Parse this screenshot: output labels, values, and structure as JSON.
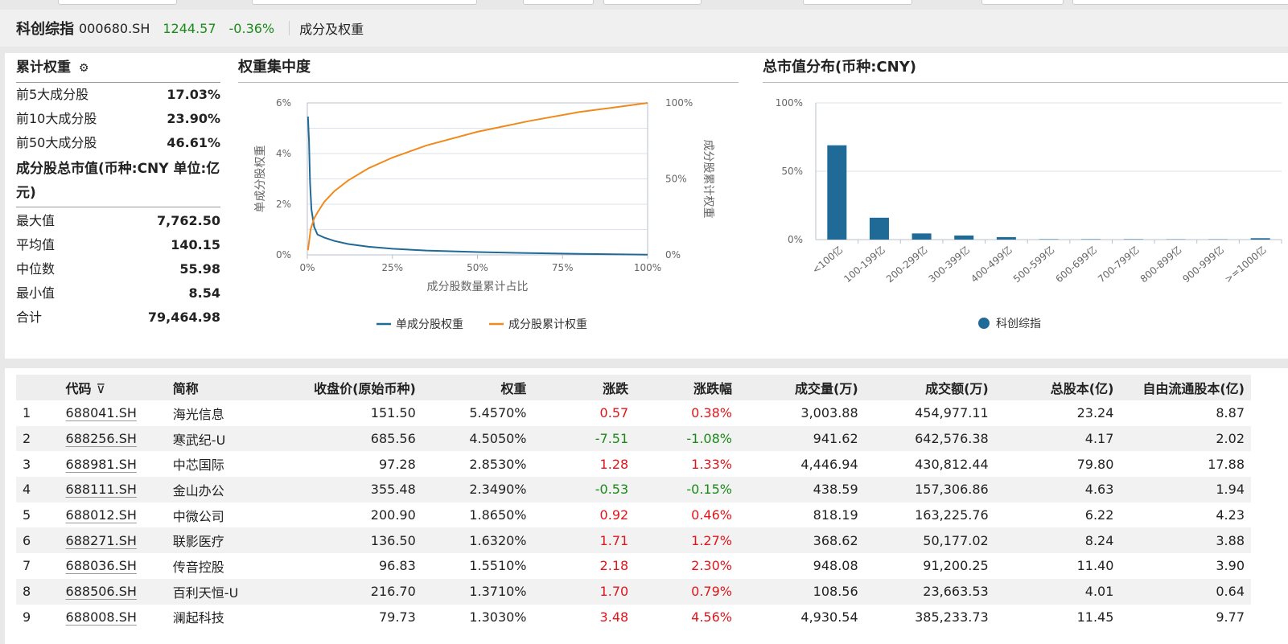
{
  "header": {
    "index_name": "科创综指",
    "index_code": "000680.SH",
    "price": "1244.57",
    "change_pct": "-0.36%",
    "section": "成分及权重"
  },
  "cumulative": {
    "title": "累计权重",
    "rows": [
      {
        "label": "前5大成分股",
        "value": "17.03%"
      },
      {
        "label": "前10大成分股",
        "value": "23.90%"
      },
      {
        "label": "前50大成分股",
        "value": "46.61%"
      }
    ]
  },
  "market_value": {
    "title": "成分股总市值(币种:CNY 单位:亿元)",
    "rows": [
      {
        "label": "最大值",
        "value": "7,762.50"
      },
      {
        "label": "平均值",
        "value": "140.15"
      },
      {
        "label": "中位数",
        "value": "55.98"
      },
      {
        "label": "最小值",
        "value": "8.54"
      },
      {
        "label": "合计",
        "value": "79,464.98"
      }
    ]
  },
  "charts": {
    "concentration_title": "权重集中度",
    "distribution_title": "总市值分布(币种:CNY)"
  },
  "chart_data": [
    {
      "type": "line",
      "title": "权重集中度",
      "xlabel": "成分股数量累计占比",
      "ylabel_left": "单成分股权重",
      "ylabel_right": "成分股累计权重",
      "x_ticks": [
        "0%",
        "25%",
        "50%",
        "75%",
        "100%"
      ],
      "y_left_ticks": [
        "0%",
        "2%",
        "4%",
        "6%"
      ],
      "y_right_ticks": [
        "0%",
        "50%",
        "100%"
      ],
      "xlim": [
        0,
        100
      ],
      "y_left_lim": [
        0,
        6
      ],
      "y_right_lim": [
        0,
        100
      ],
      "series": [
        {
          "name": "单成分股权重",
          "color": "#1f6a96",
          "axis": "left",
          "x": [
            0.2,
            0.5,
            0.8,
            1.2,
            2,
            3,
            5,
            8,
            12,
            18,
            25,
            35,
            50,
            65,
            80,
            100
          ],
          "y": [
            5.46,
            4.5,
            2.85,
            1.8,
            1.1,
            0.8,
            0.68,
            0.55,
            0.43,
            0.32,
            0.24,
            0.17,
            0.11,
            0.07,
            0.04,
            0.01
          ]
        },
        {
          "name": "成分股累计权重",
          "color": "#f08a1c",
          "axis": "right",
          "x": [
            0.2,
            1,
            2,
            3,
            5,
            8,
            12,
            18,
            25,
            35,
            50,
            65,
            80,
            90,
            100
          ],
          "y": [
            3,
            17,
            24,
            28,
            35,
            42,
            49,
            57,
            64,
            72,
            81,
            88,
            94,
            97,
            100
          ]
        }
      ],
      "legend_position": "bottom"
    },
    {
      "type": "bar",
      "title": "总市值分布(币种:CNY)",
      "categories": [
        "<100亿",
        "100-199亿",
        "200-299亿",
        "300-399亿",
        "400-499亿",
        "500-599亿",
        "600-699亿",
        "700-799亿",
        "800-899亿",
        "900-999亿",
        ">=1000亿"
      ],
      "series": [
        {
          "name": "科创综指",
          "color": "#1f6a96",
          "values": [
            69,
            16,
            4.5,
            3,
            1.8,
            0.3,
            0.3,
            0.3,
            0.2,
            0.2,
            1
          ]
        }
      ],
      "y_ticks": [
        "0%",
        "50%",
        "100%"
      ],
      "ylim": [
        0,
        100
      ],
      "legend_position": "bottom"
    }
  ],
  "table": {
    "columns": [
      "",
      "代码",
      "简称",
      "收盘价(原始币种)",
      "权重",
      "涨跌",
      "涨跌幅",
      "成交量(万)",
      "成交额(万)",
      "总股本(亿)",
      "自由流通股本(亿)"
    ],
    "rows": [
      [
        "1",
        "688041.SH",
        "海光信息",
        "151.50",
        "5.4570%",
        "0.57",
        "0.38%",
        "3,003.88",
        "454,977.11",
        "23.24",
        "8.87"
      ],
      [
        "2",
        "688256.SH",
        "寒武纪-U",
        "685.56",
        "4.5050%",
        "-7.51",
        "-1.08%",
        "941.62",
        "642,576.38",
        "4.17",
        "2.02"
      ],
      [
        "3",
        "688981.SH",
        "中芯国际",
        "97.28",
        "2.8530%",
        "1.28",
        "1.33%",
        "4,446.94",
        "430,812.44",
        "79.80",
        "17.88"
      ],
      [
        "4",
        "688111.SH",
        "金山办公",
        "355.48",
        "2.3490%",
        "-0.53",
        "-0.15%",
        "438.59",
        "157,306.86",
        "4.63",
        "1.94"
      ],
      [
        "5",
        "688012.SH",
        "中微公司",
        "200.90",
        "1.8650%",
        "0.92",
        "0.46%",
        "818.19",
        "163,225.76",
        "6.22",
        "4.23"
      ],
      [
        "6",
        "688271.SH",
        "联影医疗",
        "136.50",
        "1.6320%",
        "1.71",
        "1.27%",
        "368.62",
        "50,177.02",
        "8.24",
        "3.88"
      ],
      [
        "7",
        "688036.SH",
        "传音控股",
        "96.83",
        "1.5510%",
        "2.18",
        "2.30%",
        "948.08",
        "91,200.25",
        "11.40",
        "3.90"
      ],
      [
        "8",
        "688506.SH",
        "百利天恒-U",
        "216.70",
        "1.3710%",
        "1.70",
        "0.79%",
        "108.56",
        "23,663.53",
        "4.01",
        "0.64"
      ],
      [
        "9",
        "688008.SH",
        "澜起科技",
        "79.73",
        "1.3030%",
        "3.48",
        "4.56%",
        "4,930.54",
        "385,233.73",
        "11.45",
        "9.77"
      ]
    ]
  },
  "colors": {
    "up": "#e0161c",
    "down": "#1a8a1a",
    "series_blue": "#1f6a96",
    "series_orange": "#f08a1c"
  }
}
